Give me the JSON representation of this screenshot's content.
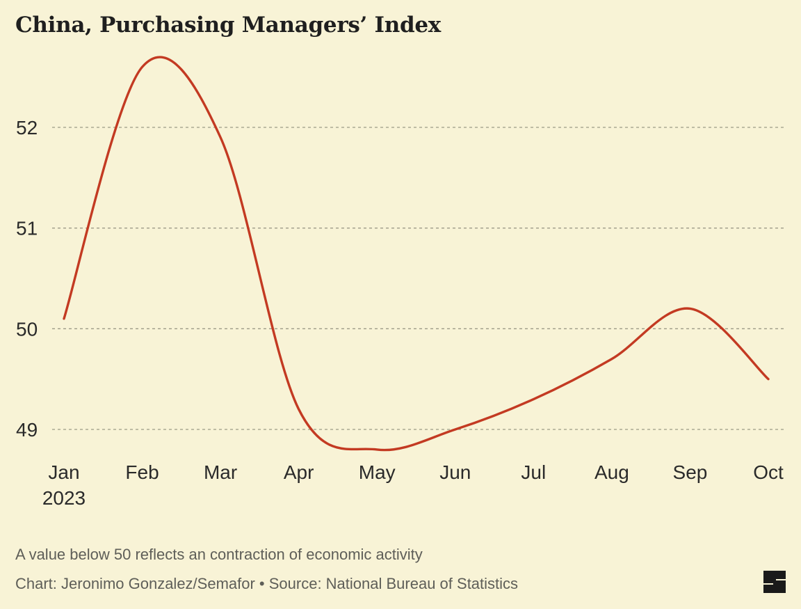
{
  "chart_data": {
    "type": "line",
    "title": "China, Purchasing Managers’ Index",
    "categories": [
      "Jan",
      "Feb",
      "Mar",
      "Apr",
      "May",
      "Jun",
      "Jul",
      "Aug",
      "Sep",
      "Oct"
    ],
    "x_sublabel": "2023",
    "series": [
      {
        "values": [
          50.1,
          52.6,
          51.9,
          49.2,
          48.8,
          49.0,
          49.3,
          49.7,
          50.2,
          49.5
        ]
      }
    ],
    "yticks": [
      49,
      50,
      51,
      52
    ],
    "ylim": [
      48.6,
      52.9
    ],
    "grid": true,
    "line_color": "#c33a22"
  },
  "note": "A value below 50 reflects an contraction of economic activity",
  "credit": "Chart: Jeronimo Gonzalez/Semafor • Source: National Bureau of Statistics",
  "logo": {
    "name": "Semafor",
    "icon": "semafor-logo-icon",
    "color": "#1a1a1a"
  },
  "background": "#f8f3d6"
}
